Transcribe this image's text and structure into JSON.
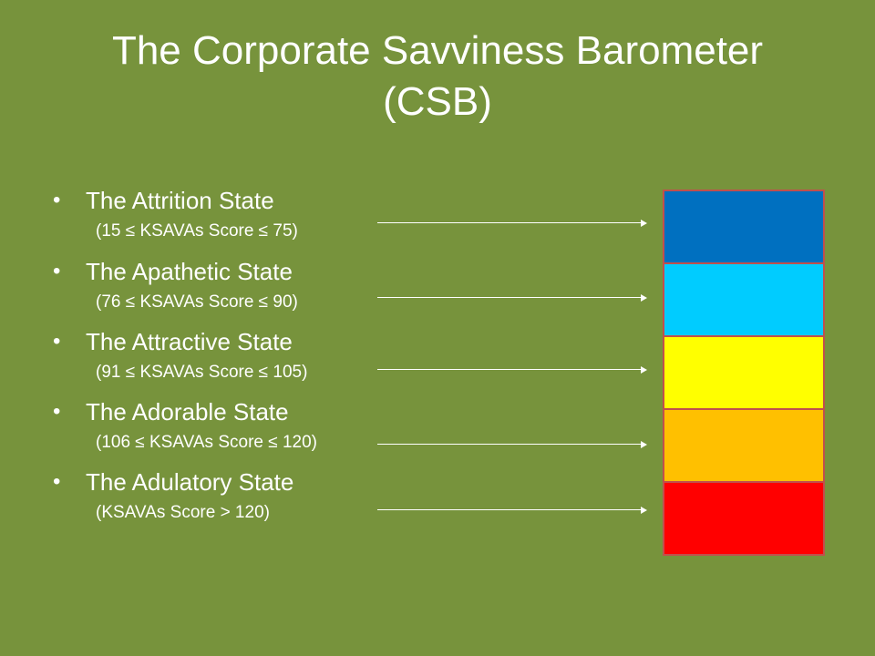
{
  "title": {
    "line1": "The Corporate Savviness Barometer",
    "line2": "(CSB)"
  },
  "states": [
    {
      "bullet": "•",
      "name": "The Attrition State",
      "range": "(15 ≤ KSAVAs Score ≤ 75)",
      "color": "#0070c0"
    },
    {
      "bullet": "•",
      "name": "The Apathetic State",
      "range": "(76 ≤ KSAVAs Score ≤ 90)",
      "color": "#00ccff"
    },
    {
      "bullet": "•",
      "name": "The Attractive State",
      "range": "(91 ≤ KSAVAs Score ≤ 105)",
      "color": "#ffff00"
    },
    {
      "bullet": "•",
      "name": "The Adorable State",
      "range": "(106 ≤ KSAVAs Score ≤ 120)",
      "color": "#ffc000"
    },
    {
      "bullet": "•",
      "name": "The Adulatory State",
      "range": "(KSAVAs Score > 120)",
      "color": "#ff0000"
    }
  ],
  "colors": {
    "background": "#77933c",
    "segment_border": "#c0504d",
    "text": "#ffffff"
  }
}
